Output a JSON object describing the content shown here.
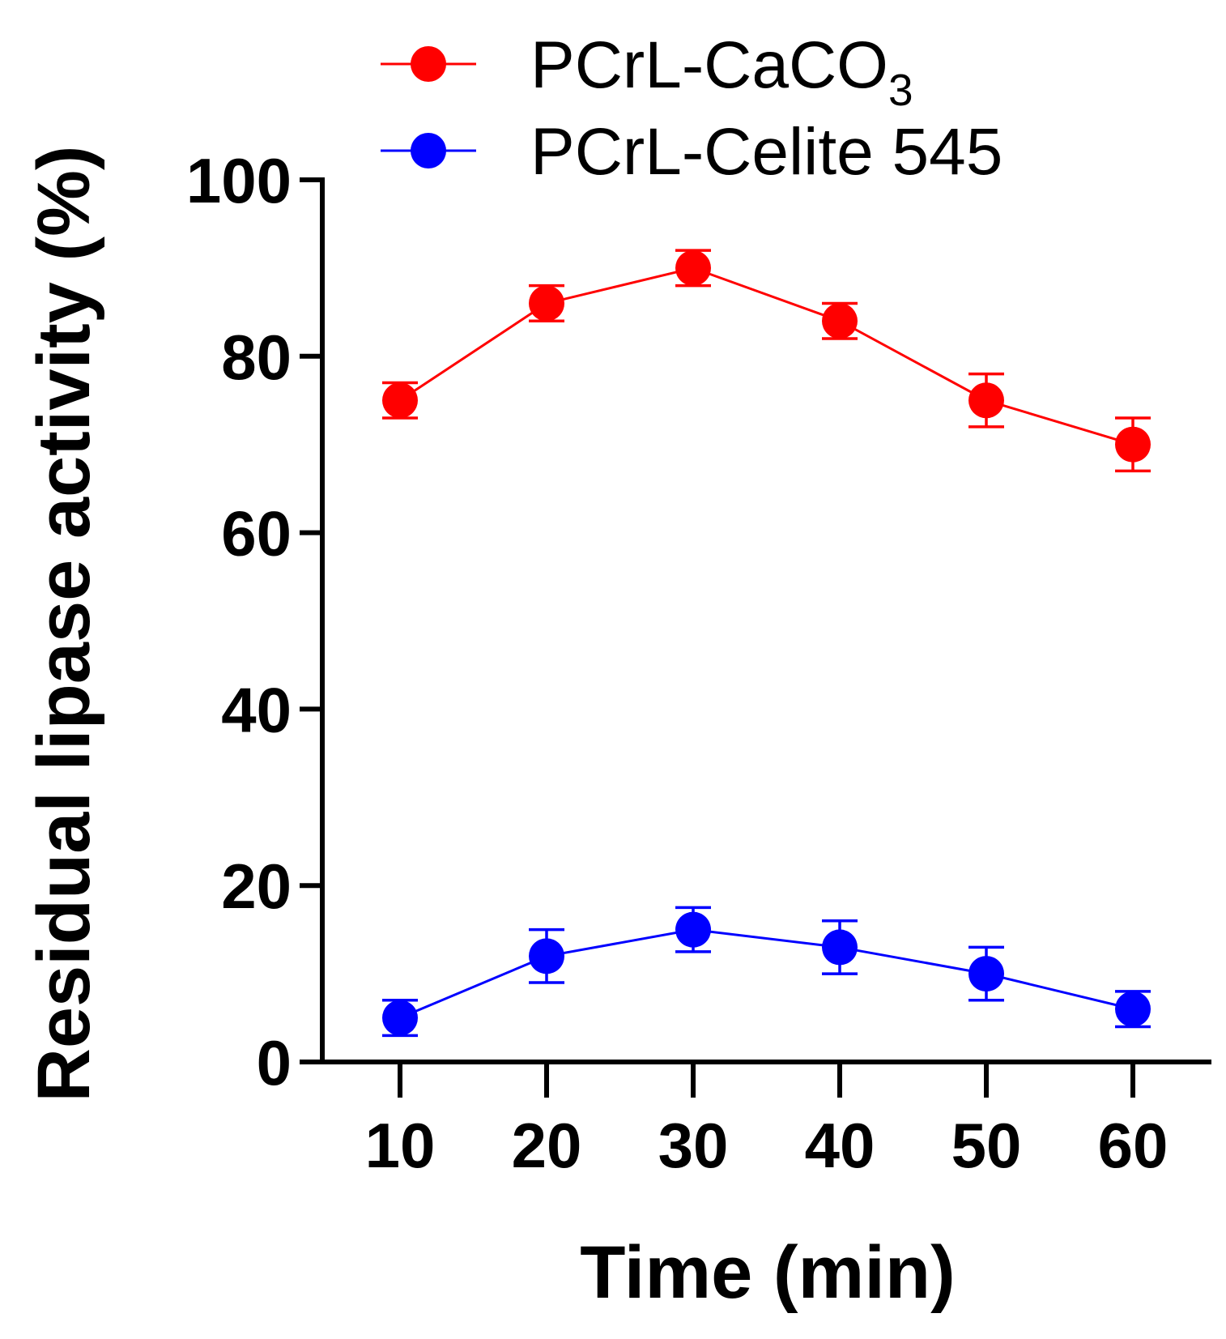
{
  "chart_data": {
    "type": "line",
    "xlabel": "Time (min)",
    "ylabel": "Residual lipase activity (%)",
    "x": [
      10,
      20,
      30,
      40,
      50,
      60
    ],
    "xticks": [
      "10",
      "20",
      "30",
      "40",
      "50",
      "60"
    ],
    "yticks": [
      "0",
      "20",
      "40",
      "60",
      "80",
      "100"
    ],
    "ylim": [
      0,
      100
    ],
    "legend_position": "top",
    "series": [
      {
        "name": "PCrL-CaCO",
        "name_subscript": "3",
        "color": "#ff0000",
        "values": [
          75,
          86,
          90,
          84,
          75,
          70
        ],
        "errors": [
          2,
          2,
          2,
          2,
          3,
          3
        ]
      },
      {
        "name": "PCrL-Celite 545",
        "color": "#0000ff",
        "values": [
          5,
          12,
          15,
          13,
          10,
          6
        ],
        "errors": [
          2,
          3,
          2.5,
          3,
          3,
          2
        ]
      }
    ]
  }
}
